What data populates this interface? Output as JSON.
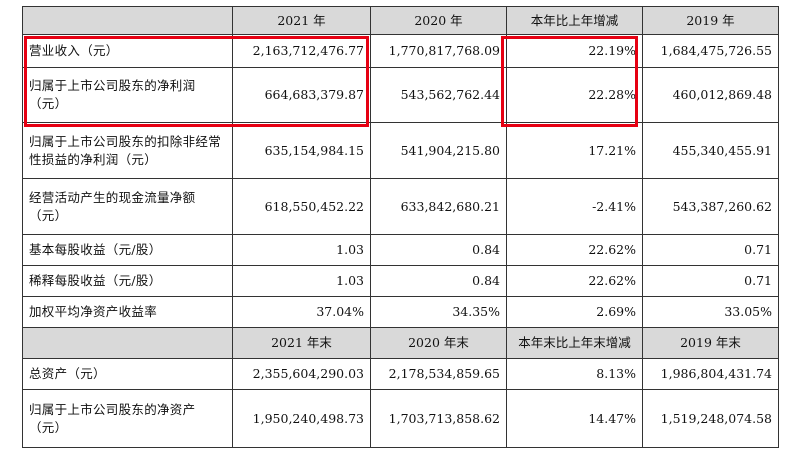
{
  "header1": [
    "2021 年",
    "2020 年",
    "本年比上年增减",
    "2019 年"
  ],
  "header2": [
    "2021 年末",
    "2020 年末",
    "本年末比上年末增减",
    "2019 年末"
  ],
  "rows": [
    {
      "label": "营业收入（元）",
      "values": [
        "2,163,712,476.77",
        "1,770,817,768.09",
        "22.19%",
        "1,684,475,726.55"
      ]
    },
    {
      "label": "归属于上市公司股东的净利润（元）",
      "values": [
        "664,683,379.87",
        "543,562,762.44",
        "22.28%",
        "460,012,869.48"
      ]
    },
    {
      "label": "归属于上市公司股东的扣除非经常性损益的净利润（元）",
      "values": [
        "635,154,984.15",
        "541,904,215.80",
        "17.21%",
        "455,340,455.91"
      ]
    },
    {
      "label": "经营活动产生的现金流量净额（元）",
      "values": [
        "618,550,452.22",
        "633,842,680.21",
        "-2.41%",
        "543,387,260.62"
      ]
    },
    {
      "label": "基本每股收益（元/股）",
      "values": [
        "1.03",
        "0.84",
        "22.62%",
        "0.71"
      ]
    },
    {
      "label": "稀释每股收益（元/股）",
      "values": [
        "1.03",
        "0.84",
        "22.62%",
        "0.71"
      ]
    },
    {
      "label": "加权平均净资产收益率",
      "values": [
        "37.04%",
        "34.35%",
        "2.69%",
        "33.05%"
      ]
    },
    {
      "label": "总资产（元）",
      "values": [
        "2,355,604,290.03",
        "2,178,534,859.65",
        "8.13%",
        "1,986,804,431.74"
      ]
    },
    {
      "label": "归属于上市公司股东的净资产（元）",
      "values": [
        "1,950,240,498.73",
        "1,703,713,858.62",
        "14.47%",
        "1,519,248,074.58"
      ]
    }
  ],
  "highlight_color": "#e60012"
}
